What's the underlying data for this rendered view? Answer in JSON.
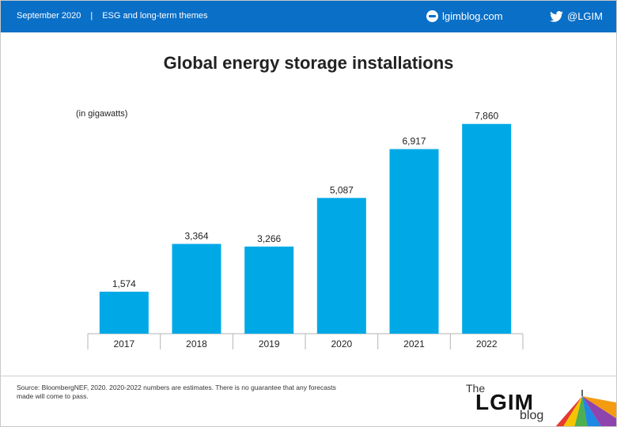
{
  "header": {
    "date": "September 2020",
    "divider": "|",
    "section": "ESG and long-term themes",
    "site": "lgimblog.com",
    "twitter": "@LGIM"
  },
  "chart_data": {
    "type": "bar",
    "title": "Global energy storage installations",
    "unit_label": "(in gigawatts)",
    "categories": [
      "2017",
      "2018",
      "2019",
      "2020",
      "2021",
      "2022"
    ],
    "values": [
      1574,
      3364,
      3266,
      5087,
      6917,
      7860
    ],
    "value_labels": [
      "1,574",
      "3,364",
      "3,266",
      "5,087",
      "6,917",
      "7,860"
    ],
    "ylim": [
      0,
      8000
    ],
    "grid": false,
    "legend": "none",
    "bar_color": "#00a9e6"
  },
  "footer": {
    "source": "Source: BloombergNEF, 2020. 2020-2022 numbers are estimates. There is no guarantee that any forecasts made will come to pass.",
    "logo_the": "The",
    "logo_lgim": "LGIM",
    "logo_blog": "blog"
  },
  "colors": {
    "header_bg": "#0a6fc7",
    "bar": "#00a9e6"
  }
}
